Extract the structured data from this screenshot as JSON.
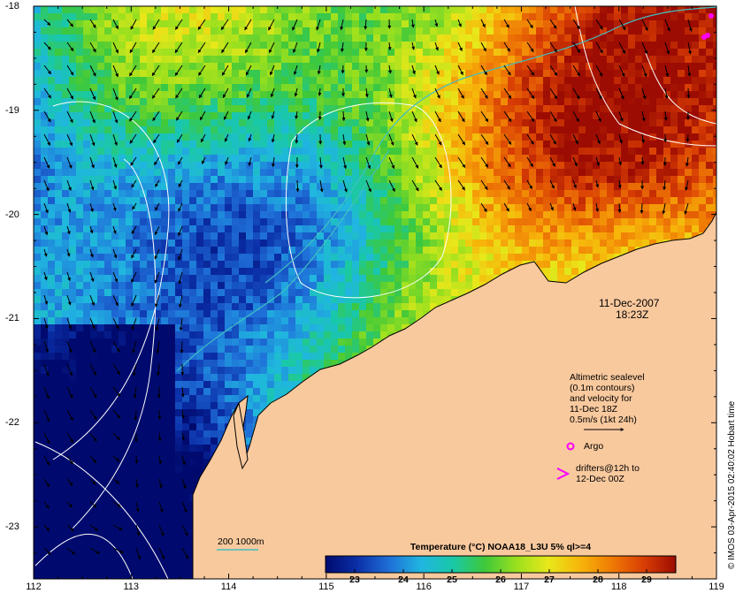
{
  "map": {
    "x_ticks": [
      "112",
      "113",
      "114",
      "115",
      "116",
      "117",
      "118",
      "119"
    ],
    "y_ticks": [
      "-18",
      "-19",
      "-20",
      "-21",
      "-22",
      "-23"
    ],
    "lon_range": [
      112,
      119
    ],
    "lat_range": [
      -18,
      -23.5
    ],
    "date": "11-Dec-2007",
    "time": "18:23Z",
    "altimetry_note": [
      "Altimetric sealevel",
      "(0.1m contours)",
      "and velocity for",
      "11-Dec 18Z",
      "0.5m/s (1kt 24h)"
    ],
    "argo_label": "Argo",
    "drifters_label": [
      "drifters@12h to",
      "12-Dec 00Z"
    ],
    "isobath_label": "200  1000m",
    "credit": "© IMOS 03-Apr-2015 02:40:02 Hobart time",
    "land_color": "#f9c99e",
    "contour_color": "#ffffff",
    "isobath_color": "#40c0c0",
    "argo_color": "#ff00ff"
  },
  "colorbar": {
    "title": "Temperature (°C) NOAA18_L3U 5% ql>=4",
    "ticks": [
      "23",
      "24",
      "25",
      "26",
      "27",
      "28",
      "29"
    ],
    "range": [
      22.4,
      29.6
    ],
    "stops": [
      "#000a6e",
      "#0b2fa8",
      "#1f6fd8",
      "#20b6e0",
      "#19c8a8",
      "#3ec83a",
      "#9be01e",
      "#e8e81a",
      "#f7b50a",
      "#ef7a05",
      "#d83d04",
      "#9c0c02"
    ]
  }
}
